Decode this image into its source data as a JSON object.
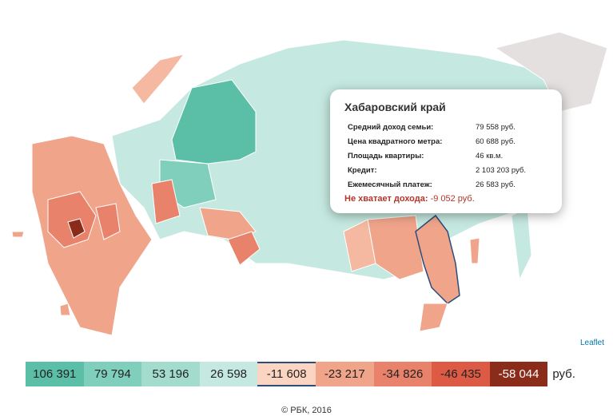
{
  "popup": {
    "title": "Хабаровский край",
    "rows": [
      [
        "Средний доход семьи:",
        "79 558 руб."
      ],
      [
        "Цена квадратного метра:",
        "60 688 руб."
      ],
      [
        "Площадь квартиры:",
        "46 кв.м."
      ],
      [
        "Кредит:",
        "2 103 203 руб."
      ],
      [
        "Ежемесячный платеж:",
        "26 583 руб."
      ]
    ],
    "shortfall_label": "Не хватает дохода:",
    "shortfall_value": "-9 052 руб."
  },
  "attribution": "Leaflet",
  "legend": {
    "items": [
      "106 391",
      "79 794",
      "53 196",
      "26 598",
      "-11 608",
      "-23 217",
      "-34 826",
      "-46 435",
      "-58 044"
    ],
    "unit": "руб."
  },
  "footer": "© РБК, 2016"
}
